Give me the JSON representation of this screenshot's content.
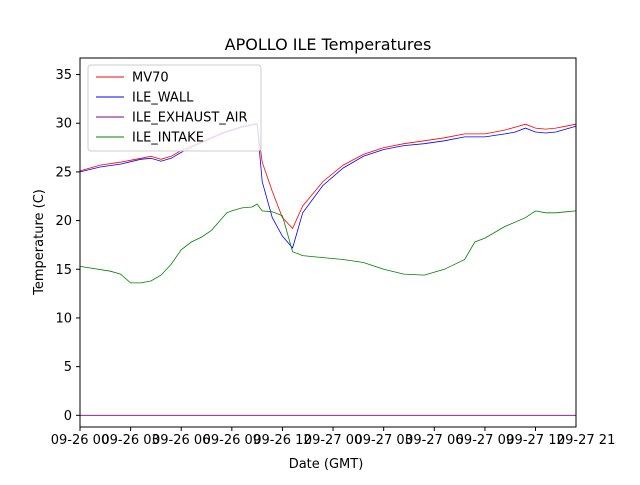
{
  "chart_data": {
    "type": "line",
    "title": "APOLLO ILE Temperatures",
    "xlabel": "Date (GMT)",
    "ylabel": "Temperature (C)",
    "xlim_hours": [
      0,
      49
    ],
    "ylim": [
      -1.2,
      36.7
    ],
    "yticks": [
      0,
      5,
      10,
      15,
      20,
      25,
      30,
      35
    ],
    "xticks": [
      {
        "hour": 0,
        "label": "09-26 00"
      },
      {
        "hour": 5,
        "label": "09-26 03"
      },
      {
        "hour": 10,
        "label": "09-26 06"
      },
      {
        "hour": 15,
        "label": "09-26 09"
      },
      {
        "hour": 20,
        "label": "09-26 12"
      },
      {
        "hour": 25,
        "label": "09-27 00"
      },
      {
        "hour": 30,
        "label": "09-27 03"
      },
      {
        "hour": 35,
        "label": "09-27 06"
      },
      {
        "hour": 40,
        "label": "09-27 09"
      },
      {
        "hour": 45,
        "label": "09-27 12"
      },
      {
        "hour": 50,
        "label": "09-27 21"
      }
    ],
    "legend_position": "top-left",
    "series": [
      {
        "name": "MV70",
        "color": "#ff0000",
        "x": [
          0,
          2,
          4,
          6,
          7,
          8,
          9,
          10,
          12,
          14,
          16,
          17.5,
          18,
          19,
          20,
          21,
          22,
          24,
          26,
          28,
          30,
          32,
          34,
          36,
          38,
          40,
          42,
          43,
          44,
          45,
          46,
          47,
          48,
          49
        ],
        "y": [
          25.1,
          25.7,
          26.0,
          26.4,
          26.6,
          26.3,
          26.6,
          27.2,
          28.1,
          29.0,
          29.7,
          30.0,
          26.0,
          23.0,
          20.3,
          19.2,
          21.5,
          24.0,
          25.7,
          26.8,
          27.5,
          27.9,
          28.2,
          28.5,
          28.9,
          28.9,
          29.3,
          29.6,
          29.9,
          29.5,
          29.4,
          29.5,
          29.7,
          29.9
        ]
      },
      {
        "name": "ILE_WALL",
        "color": "#0000ff",
        "x": [
          0,
          2,
          4,
          6,
          7,
          8,
          9,
          10,
          12,
          14,
          16,
          17.5,
          18,
          19,
          20,
          21,
          22,
          24,
          26,
          28,
          30,
          32,
          34,
          36,
          38,
          40,
          42,
          43,
          44,
          45,
          46,
          47,
          48,
          49
        ],
        "y": [
          25.0,
          25.5,
          25.8,
          26.3,
          26.4,
          26.1,
          26.4,
          27.0,
          28.0,
          28.9,
          29.6,
          29.9,
          24.0,
          20.3,
          18.4,
          17.2,
          20.8,
          23.6,
          25.4,
          26.6,
          27.3,
          27.7,
          27.9,
          28.2,
          28.6,
          28.6,
          28.9,
          29.1,
          29.5,
          29.1,
          29.0,
          29.1,
          29.4,
          29.7
        ]
      },
      {
        "name": "ILE_EXHAUST_AIR",
        "color": "#800080",
        "x": [
          0,
          49
        ],
        "y": [
          0,
          0
        ]
      },
      {
        "name": "ILE_INTAKE",
        "color": "#008000",
        "x": [
          0,
          3,
          4,
          5,
          6,
          7,
          8,
          9,
          10,
          11,
          12,
          13,
          14,
          14.5,
          15,
          16,
          17,
          17.5,
          18,
          19,
          20,
          21,
          22,
          24,
          26,
          28,
          30,
          32,
          34,
          36,
          38,
          39,
          40,
          42,
          44,
          45,
          46,
          47,
          48,
          49
        ],
        "y": [
          15.3,
          14.8,
          14.5,
          13.6,
          13.6,
          13.8,
          14.4,
          15.5,
          17.0,
          17.8,
          18.3,
          19.0,
          20.2,
          20.8,
          21.0,
          21.3,
          21.4,
          21.7,
          21.0,
          20.9,
          20.5,
          16.8,
          16.4,
          16.2,
          16.0,
          15.7,
          15.0,
          14.5,
          14.4,
          15.0,
          16.0,
          17.8,
          18.2,
          19.4,
          20.3,
          21.0,
          20.8,
          20.8,
          20.9,
          21.0
        ]
      }
    ]
  }
}
